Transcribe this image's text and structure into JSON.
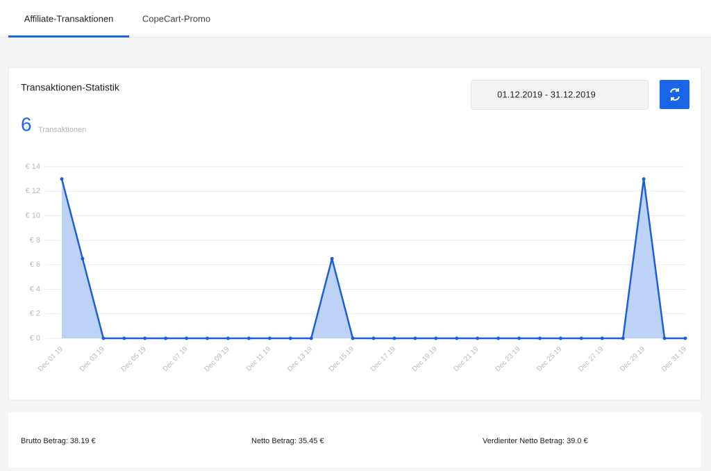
{
  "tabs": [
    "Affiliate-Transaktionen",
    "CopeCart-Promo"
  ],
  "card": {
    "title": "Transaktionen-Statistik",
    "date_range": "01.12.2019 - 31.12.2019",
    "count": 6,
    "count_label": "Transaktionen"
  },
  "chart_data": {
    "type": "line",
    "categories": [
      "Dec 01 19",
      null,
      "Dec 03 19",
      null,
      "Dec 05 19",
      null,
      "Dec 07 19",
      null,
      "Dec 09 19",
      null,
      "Dec 11 19",
      null,
      "Dec 13 19",
      null,
      "Dec 15 19",
      null,
      "Dec 17 19",
      null,
      "Dec 19 19",
      null,
      "Dec 21 19",
      null,
      "Dec 23 19",
      null,
      "Dec 25 19",
      null,
      "Dec 27 19",
      null,
      "Dec 29 19",
      null,
      "Dec 31 19"
    ],
    "values": [
      13,
      6.5,
      0,
      0,
      0,
      0,
      0,
      0,
      0,
      0,
      0,
      0,
      0,
      6.5,
      0,
      0,
      0,
      0,
      0,
      0,
      0,
      0,
      0,
      0,
      0,
      0,
      0,
      0,
      13,
      0,
      0
    ],
    "color": "#1a5fd6",
    "fill": "#bcd3f7",
    "ylim": [
      0,
      14
    ],
    "yticks": [
      {
        "value": 0,
        "label": "€ 0"
      },
      {
        "value": 2,
        "label": "€ 2"
      },
      {
        "value": 4,
        "label": "€ 4"
      },
      {
        "value": 6,
        "label": "€ 6"
      },
      {
        "value": 8,
        "label": "€ 8"
      },
      {
        "value": 10,
        "label": "€ 10"
      },
      {
        "value": 12,
        "label": "€ 12"
      },
      {
        "value": 14,
        "label": "€ 14"
      }
    ],
    "grid": true
  },
  "summary": [
    "Brutto Betrag: 38.19 €",
    "Netto Betrag: 35.45 €",
    "Verdienter Netto Betrag: 39.0 €"
  ]
}
